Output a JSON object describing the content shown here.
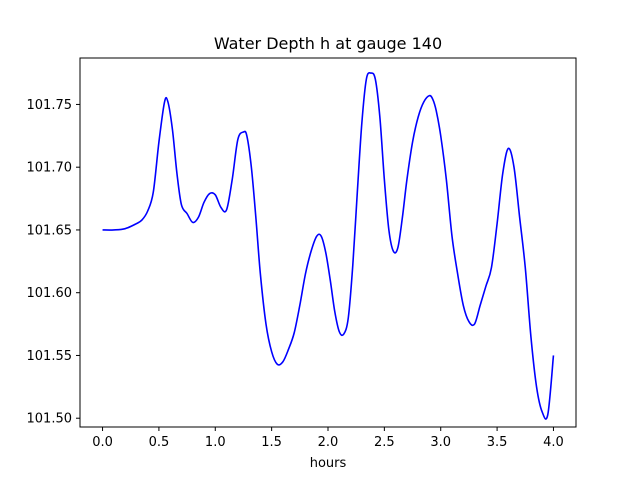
{
  "chart_data": {
    "type": "line",
    "title": "Water Depth h at gauge 140",
    "xlabel": "hours",
    "ylabel": "",
    "xlim": [
      -0.2,
      4.2
    ],
    "ylim": [
      101.493,
      101.787
    ],
    "grid": false,
    "legend": "none",
    "x_ticks": [
      0.0,
      0.5,
      1.0,
      1.5,
      2.0,
      2.5,
      3.0,
      3.5,
      4.0
    ],
    "x_tick_labels": [
      "0.0",
      "0.5",
      "1.0",
      "1.5",
      "2.0",
      "2.5",
      "3.0",
      "3.5",
      "4.0"
    ],
    "y_ticks": [
      101.5,
      101.55,
      101.6,
      101.65,
      101.7,
      101.75
    ],
    "y_tick_labels": [
      "101.50",
      "101.55",
      "101.60",
      "101.65",
      "101.70",
      "101.75"
    ],
    "series": [
      {
        "color": "#0000ff",
        "x": [
          0.0,
          0.1,
          0.2,
          0.3,
          0.35,
          0.4,
          0.45,
          0.5,
          0.55,
          0.58,
          0.62,
          0.66,
          0.7,
          0.75,
          0.8,
          0.85,
          0.9,
          0.95,
          1.0,
          1.05,
          1.1,
          1.15,
          1.2,
          1.25,
          1.28,
          1.32,
          1.36,
          1.4,
          1.45,
          1.5,
          1.55,
          1.6,
          1.65,
          1.7,
          1.75,
          1.8,
          1.85,
          1.9,
          1.94,
          1.98,
          2.02,
          2.06,
          2.1,
          2.14,
          2.18,
          2.22,
          2.26,
          2.3,
          2.34,
          2.38,
          2.42,
          2.46,
          2.5,
          2.54,
          2.58,
          2.62,
          2.66,
          2.7,
          2.75,
          2.8,
          2.85,
          2.9,
          2.93,
          2.96,
          3.0,
          3.05,
          3.1,
          3.15,
          3.2,
          3.25,
          3.3,
          3.35,
          3.4,
          3.45,
          3.5,
          3.55,
          3.6,
          3.65,
          3.7,
          3.75,
          3.8,
          3.85,
          3.9,
          3.95,
          4.0
        ],
        "y": [
          101.65,
          101.65,
          101.651,
          101.655,
          101.658,
          101.665,
          101.68,
          101.72,
          101.752,
          101.752,
          101.73,
          101.695,
          101.67,
          101.663,
          101.656,
          101.66,
          101.672,
          101.679,
          101.678,
          101.668,
          101.666,
          101.69,
          101.722,
          101.728,
          101.725,
          101.7,
          101.66,
          101.615,
          101.575,
          101.553,
          101.543,
          101.545,
          101.555,
          101.568,
          101.59,
          101.615,
          101.633,
          101.645,
          101.645,
          101.632,
          101.61,
          101.585,
          101.569,
          101.567,
          101.58,
          101.622,
          101.68,
          101.735,
          101.77,
          101.775,
          101.77,
          101.74,
          101.69,
          101.65,
          101.633,
          101.636,
          101.66,
          101.69,
          101.72,
          101.74,
          101.752,
          101.757,
          101.754,
          101.745,
          101.725,
          101.69,
          101.645,
          101.615,
          101.59,
          101.577,
          101.575,
          101.59,
          101.605,
          101.62,
          101.655,
          101.695,
          101.715,
          101.7,
          101.66,
          101.62,
          101.565,
          101.525,
          101.505,
          101.503,
          101.55
        ]
      }
    ]
  }
}
